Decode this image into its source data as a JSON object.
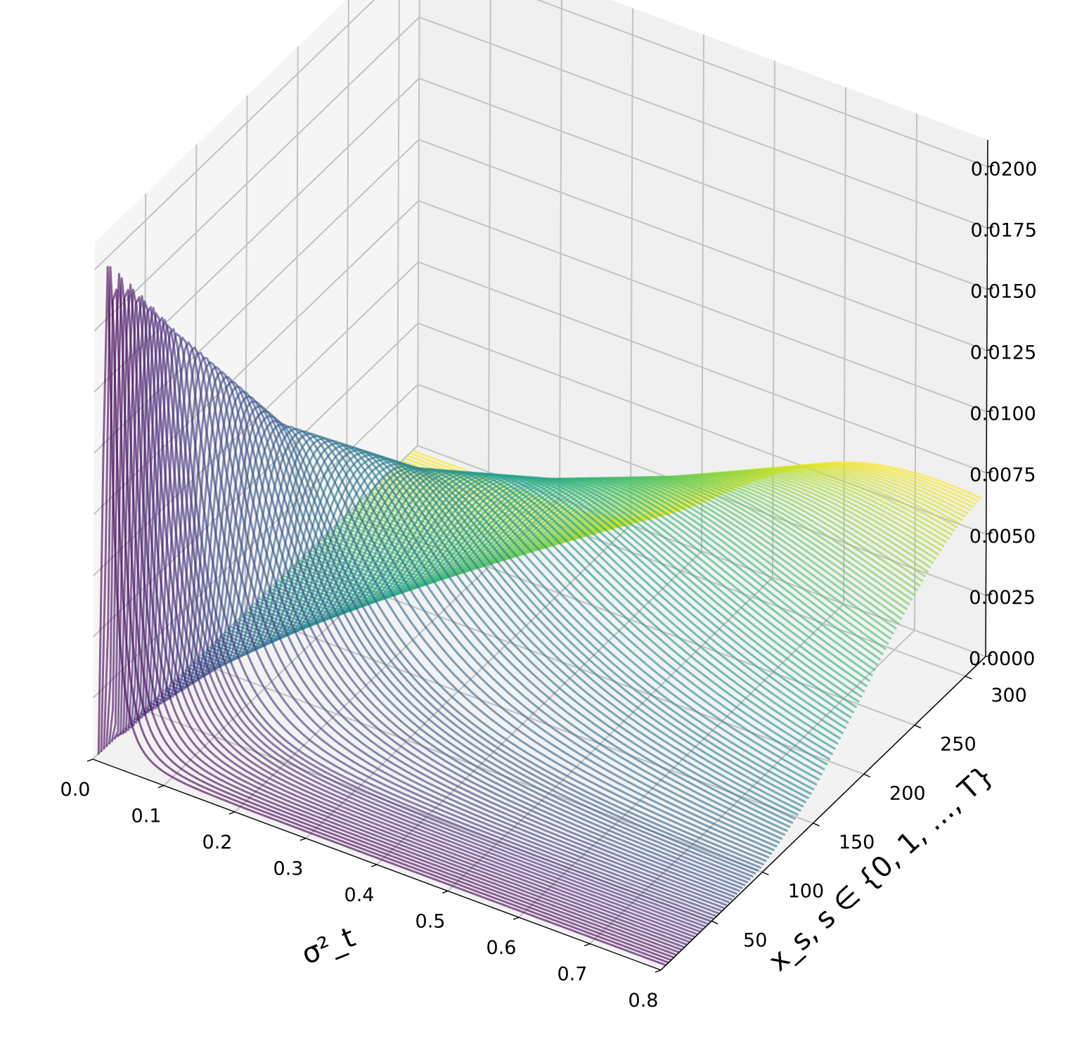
{
  "chart_data": {
    "type": "line3d",
    "title": "",
    "colormap": "viridis",
    "x_axis": {
      "label": "σ²_t",
      "ticks": [
        "0.0",
        "0.1",
        "0.2",
        "0.3",
        "0.4",
        "0.5",
        "0.6",
        "0.7",
        "0.8"
      ],
      "range": [
        0.0,
        0.8
      ]
    },
    "y_axis": {
      "label": "x_s, s ∈ {0, 1, …, T}",
      "ticks": [
        "50",
        "100",
        "150",
        "200",
        "250",
        "300"
      ],
      "range": [
        0,
        320
      ]
    },
    "z_axis": {
      "label": "",
      "ticks": [
        "0.0000",
        "0.0025",
        "0.0050",
        "0.0075",
        "0.0100",
        "0.0125",
        "0.0150",
        "0.0175",
        "0.0200"
      ],
      "range": [
        0.0,
        0.0211
      ]
    },
    "grid": true,
    "legend": "none",
    "series": {
      "s_values": [
        5,
        315
      ],
      "count": 120,
      "shape": "right-skewed density curves over σ²_t, peak shifts right and flattens as x_s increases",
      "peaks": [
        {
          "x_s": 5,
          "peak_sigma2": 0.01,
          "peak_value": 0.0203
        },
        {
          "x_s": 50,
          "peak_sigma2": 0.04,
          "peak_value": 0.016
        },
        {
          "x_s": 100,
          "peak_sigma2": 0.12,
          "peak_value": 0.011
        },
        {
          "x_s": 150,
          "peak_sigma2": 0.25,
          "peak_value": 0.0085
        },
        {
          "x_s": 200,
          "peak_sigma2": 0.4,
          "peak_value": 0.0075
        },
        {
          "x_s": 250,
          "peak_sigma2": 0.55,
          "peak_value": 0.007
        },
        {
          "x_s": 300,
          "peak_sigma2": 0.7,
          "peak_value": 0.0068
        }
      ]
    }
  }
}
